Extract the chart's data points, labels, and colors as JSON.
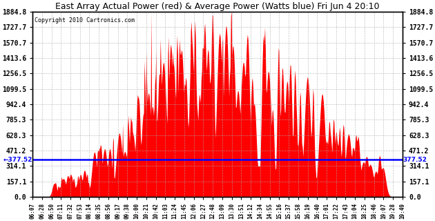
{
  "title": "East Array Actual Power (red) & Average Power (Watts blue) Fri Jun 4 20:10",
  "copyright": "Copyright 2010 Cartronics.com",
  "ymin": 0.0,
  "ymax": 1884.8,
  "yticks": [
    0.0,
    157.1,
    314.1,
    471.2,
    628.3,
    785.3,
    942.4,
    1099.5,
    1256.5,
    1413.6,
    1570.7,
    1727.7,
    1884.8
  ],
  "avg_power": 377.52,
  "fill_color": "red",
  "line_color": "blue",
  "background_color": "white",
  "grid_color": "#aaaaaa",
  "xtick_labels": [
    "06:07",
    "06:28",
    "06:50",
    "07:11",
    "07:32",
    "07:53",
    "08:14",
    "08:35",
    "08:56",
    "09:17",
    "09:38",
    "10:00",
    "10:21",
    "10:42",
    "11:03",
    "11:24",
    "11:45",
    "12:06",
    "12:27",
    "12:48",
    "13:09",
    "13:30",
    "13:51",
    "14:12",
    "14:34",
    "14:55",
    "15:16",
    "15:37",
    "15:58",
    "16:19",
    "16:40",
    "17:01",
    "17:22",
    "17:43",
    "18:04",
    "18:25",
    "18:46",
    "19:07",
    "19:28",
    "19:49"
  ]
}
